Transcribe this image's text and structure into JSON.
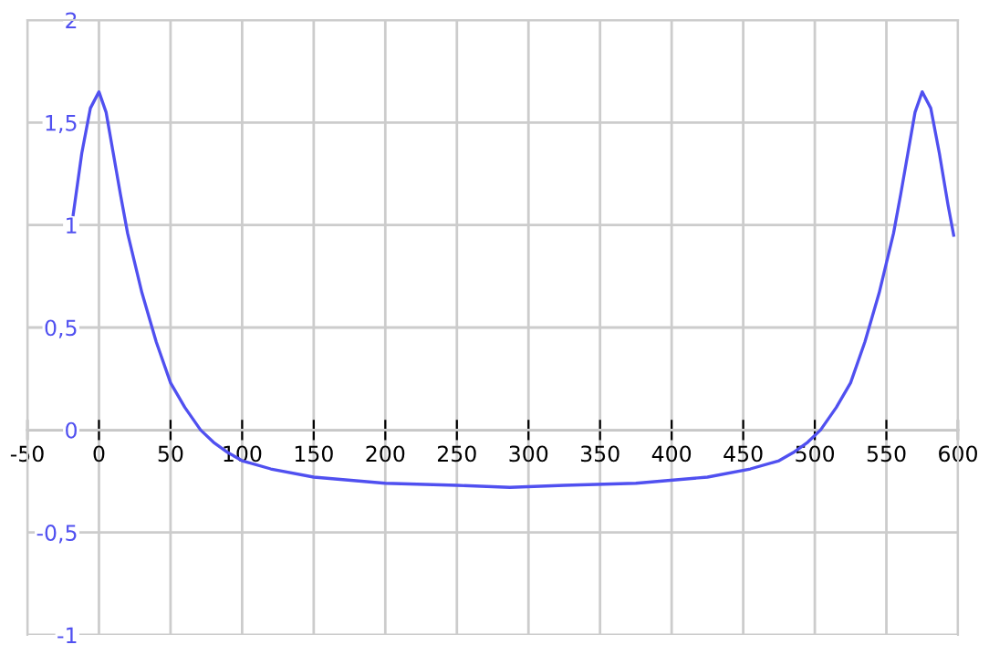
{
  "chart_data": {
    "type": "line",
    "x": [
      -18,
      -12,
      -6,
      0,
      5,
      10,
      15,
      20,
      30,
      40,
      50,
      60,
      71,
      80,
      90,
      100,
      120,
      150,
      200,
      250,
      287,
      325,
      375,
      425,
      455,
      475,
      485,
      495,
      504,
      515,
      525,
      535,
      545,
      555,
      560,
      565,
      570,
      575,
      581,
      587,
      593,
      597
    ],
    "series": [
      {
        "color": "#5050f0",
        "values": [
          1.05,
          1.35,
          1.57,
          1.65,
          1.55,
          1.35,
          1.15,
          0.96,
          0.67,
          0.43,
          0.23,
          0.11,
          0,
          -0.06,
          -0.11,
          -0.15,
          -0.19,
          -0.23,
          -0.26,
          -0.27,
          -0.28,
          -0.27,
          -0.26,
          -0.23,
          -0.19,
          -0.15,
          -0.11,
          -0.06,
          0,
          0.11,
          0.23,
          0.43,
          0.67,
          0.96,
          1.15,
          1.35,
          1.55,
          1.65,
          1.57,
          1.35,
          1.1,
          0.95
        ]
      }
    ],
    "xlim": [
      -50,
      600
    ],
    "ylim": [
      -1,
      2
    ],
    "xticks": [
      -50,
      0,
      50,
      100,
      150,
      200,
      250,
      300,
      350,
      400,
      450,
      500,
      550,
      600
    ],
    "yticks": [
      {
        "value": -1,
        "label": "-1"
      },
      {
        "value": -0.5,
        "label": "-0,5"
      },
      {
        "value": 0,
        "label": "0"
      },
      {
        "value": 0.5,
        "label": "0,5"
      },
      {
        "value": 1,
        "label": "1"
      },
      {
        "value": 1.5,
        "label": "1,5"
      },
      {
        "value": 2,
        "label": "2"
      }
    ],
    "grid": true,
    "marker": "none",
    "line_style": "solid",
    "legend": false
  }
}
